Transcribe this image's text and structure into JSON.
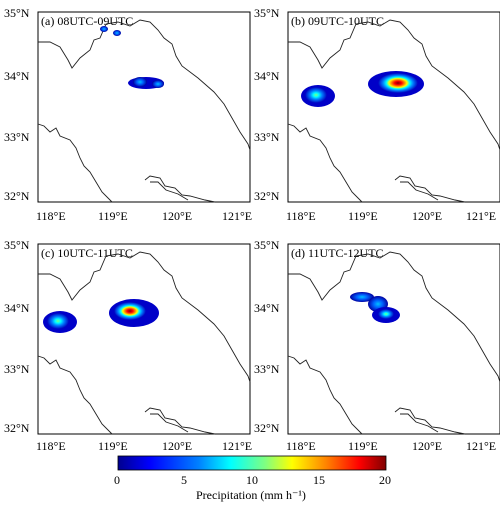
{
  "panels": [
    {
      "label": "(a) 08UTC-09UTC"
    },
    {
      "label": "(b) 09UTC-10UTC"
    },
    {
      "label": "(c) 10UTC-11UTC"
    },
    {
      "label": "(d) 11UTC-12UTC"
    }
  ],
  "lat_ticks": [
    "35°N",
    "34°N",
    "33°N",
    "32°N"
  ],
  "lon_ticks": [
    "118°E",
    "119°E",
    "120°E",
    "121°E"
  ],
  "colorbar": {
    "label": "Precipitation (mm h⁻¹)",
    "ticks": [
      "0",
      "5",
      "10",
      "15",
      "20"
    ],
    "min": 0,
    "max": 20,
    "colors": [
      "#00008f",
      "#0000ff",
      "#0080ff",
      "#00ffff",
      "#80ff80",
      "#ffff00",
      "#ff8000",
      "#ff0000",
      "#800000"
    ]
  },
  "map": {
    "lon_range": [
      117.8,
      121.1
    ],
    "lat_range": [
      31.8,
      35.0
    ]
  }
}
